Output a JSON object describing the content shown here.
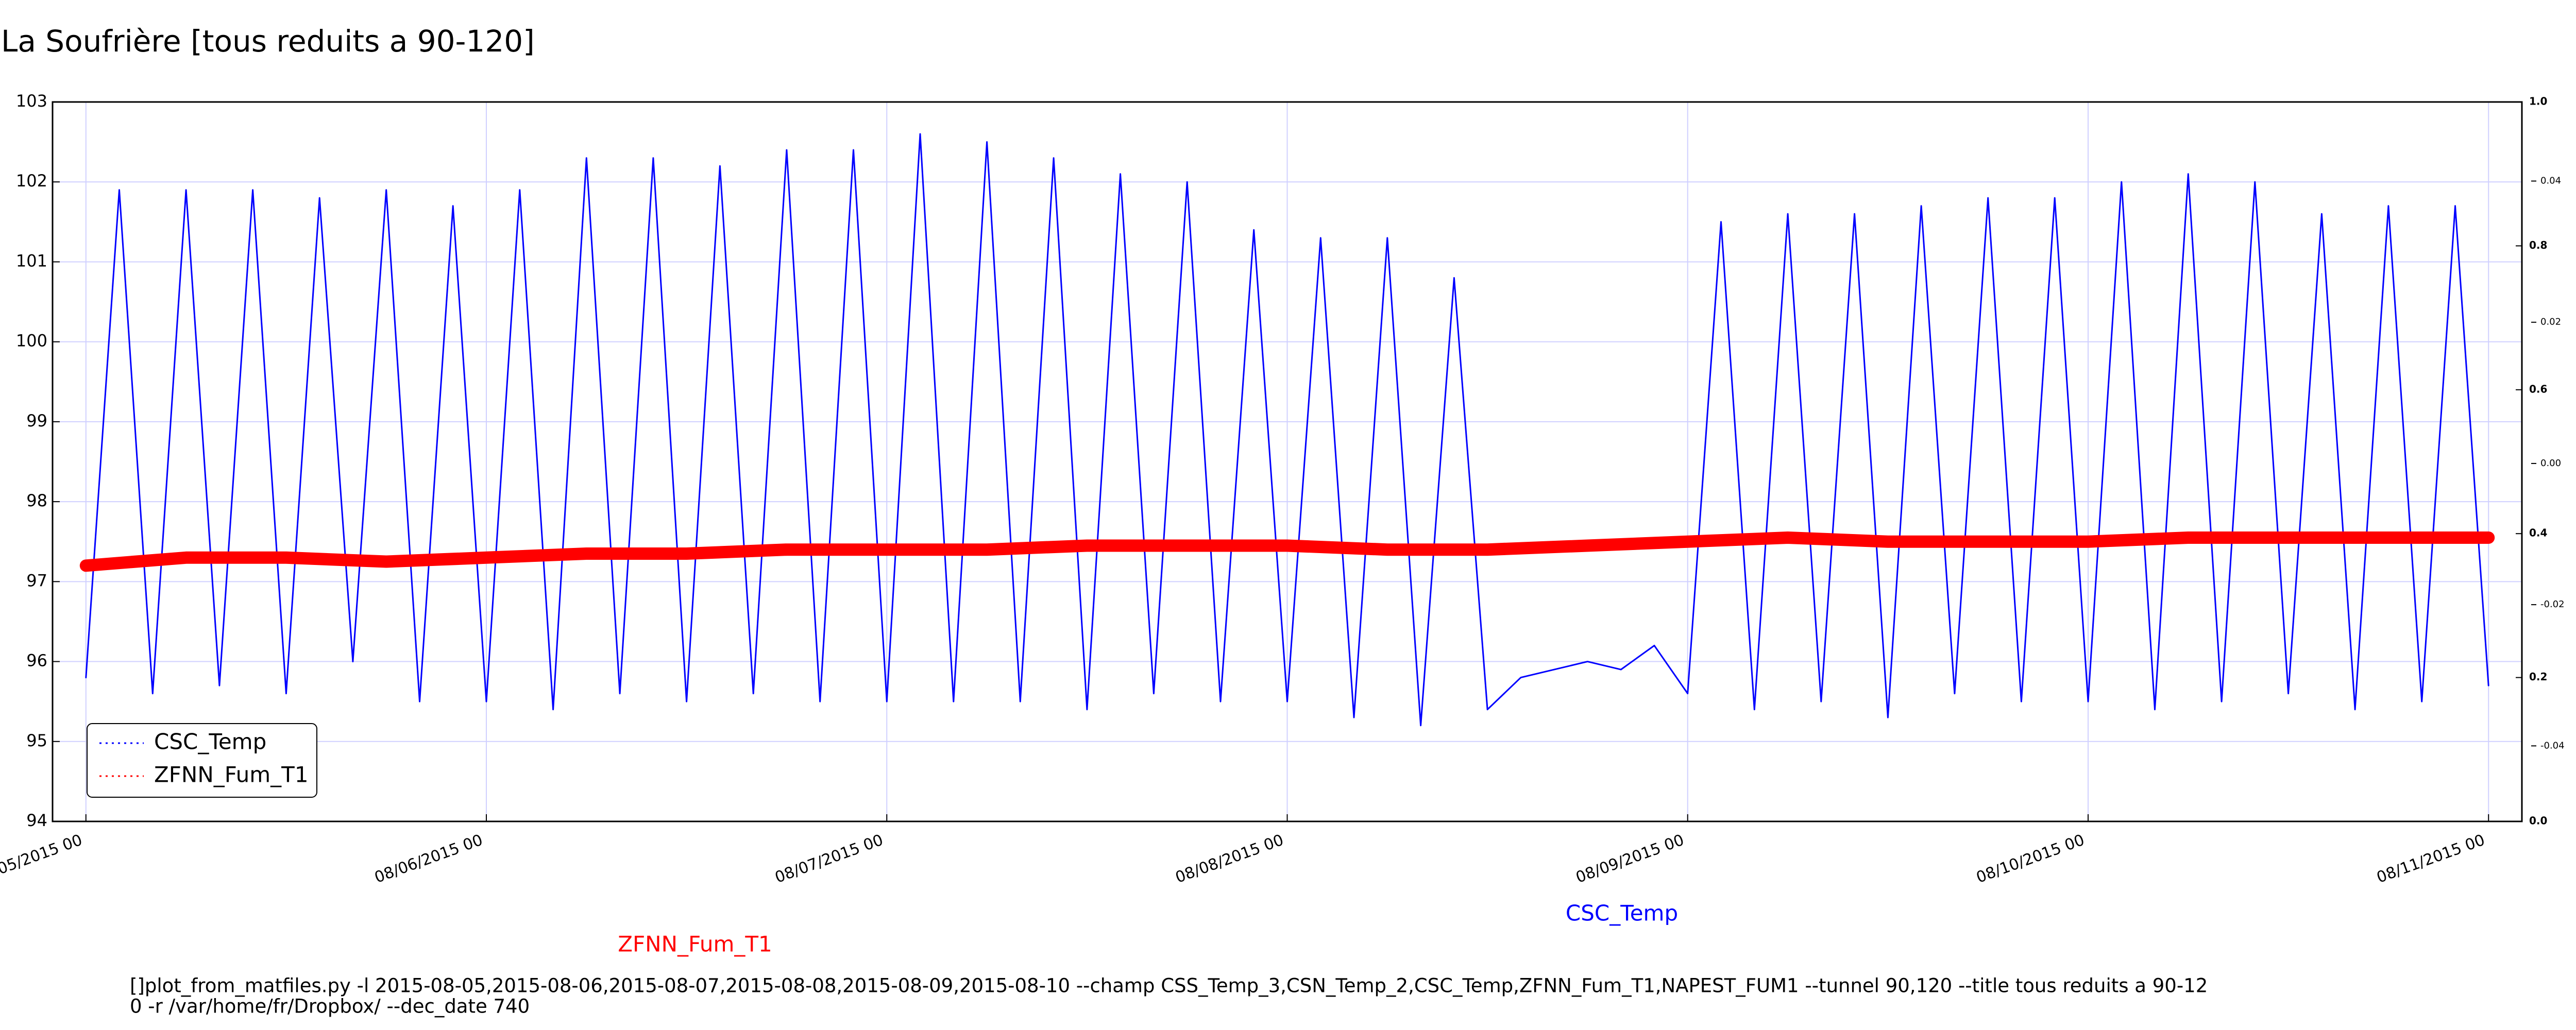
{
  "chart_data": {
    "type": "line",
    "title": "La Soufrière [tous reduits a 90-120]",
    "xlim": [
      "08/04/2015 22",
      "08/11/2015 02"
    ],
    "xticks": [
      "08/05/2015 00",
      "08/06/2015 00",
      "08/07/2015 00",
      "08/08/2015 00",
      "08/09/2015 00",
      "08/10/2015 00",
      "08/11/2015 00"
    ],
    "ylim": [
      94,
      103
    ],
    "yticks": [
      94,
      95,
      96,
      97,
      98,
      99,
      100,
      101,
      102,
      103
    ],
    "y2lim": [
      0,
      1
    ],
    "y2ticks": [
      {
        "value": 0,
        "label": "0.0"
      },
      {
        "value": 0.2,
        "label": "0.2"
      },
      {
        "value": 0.4,
        "label": "0.4"
      },
      {
        "value": 0.6,
        "label": "0.6"
      },
      {
        "value": 0.8,
        "label": "0.8"
      },
      {
        "value": 1,
        "label": "1.0"
      }
    ],
    "y3lim": [
      -0.0507,
      0.0512
    ],
    "y3ticks": [
      -0.04,
      -0.02,
      {
        "value": 0,
        "label": "0.00"
      },
      0.02,
      0.04
    ],
    "grid": true,
    "grid_color": "#d0d0ff",
    "legend": "lower left",
    "series": [
      {
        "name": "CSC_Temp",
        "color": "#0000ff",
        "x": [
          "08/05/2015 00",
          "08/05/2015 02",
          "08/05/2015 04",
          "08/05/2015 06",
          "08/05/2015 08",
          "08/05/2015 10",
          "08/05/2015 12",
          "08/05/2015 14",
          "08/05/2015 16",
          "08/05/2015 18",
          "08/05/2015 20",
          "08/05/2015 22",
          "08/06/2015 00",
          "08/06/2015 02",
          "08/06/2015 04",
          "08/06/2015 06",
          "08/06/2015 08",
          "08/06/2015 10",
          "08/06/2015 12",
          "08/06/2015 14",
          "08/06/2015 16",
          "08/06/2015 18",
          "08/06/2015 20",
          "08/06/2015 22",
          "08/07/2015 00",
          "08/07/2015 02",
          "08/07/2015 04",
          "08/07/2015 06",
          "08/07/2015 08",
          "08/07/2015 10",
          "08/07/2015 12",
          "08/07/2015 14",
          "08/07/2015 16",
          "08/07/2015 18",
          "08/07/2015 20",
          "08/07/2015 22",
          "08/08/2015 00",
          "08/08/2015 02",
          "08/08/2015 04",
          "08/08/2015 06",
          "08/08/2015 08",
          "08/08/2015 10",
          "08/08/2015 12",
          "08/08/2015 14",
          "08/08/2015 16",
          "08/08/2015 18",
          "08/08/2015 20",
          "08/08/2015 22",
          "08/09/2015 00",
          "08/09/2015 02",
          "08/09/2015 04",
          "08/09/2015 06",
          "08/09/2015 08",
          "08/09/2015 10",
          "08/09/2015 12",
          "08/09/2015 14",
          "08/09/2015 16",
          "08/09/2015 18",
          "08/09/2015 20",
          "08/09/2015 22",
          "08/10/2015 00",
          "08/10/2015 02",
          "08/10/2015 04",
          "08/10/2015 06",
          "08/10/2015 08",
          "08/10/2015 10",
          "08/10/2015 12",
          "08/10/2015 14",
          "08/10/2015 16",
          "08/10/2015 18",
          "08/10/2015 20",
          "08/10/2015 22",
          "08/11/2015 00"
        ],
        "values": [
          95.8,
          101.9,
          95.6,
          101.9,
          95.7,
          101.9,
          95.6,
          101.8,
          96.0,
          101.9,
          95.5,
          101.7,
          95.5,
          101.9,
          95.4,
          102.3,
          95.6,
          102.3,
          95.5,
          102.2,
          95.6,
          102.4,
          95.5,
          102.4,
          95.5,
          102.6,
          95.5,
          102.5,
          95.5,
          102.3,
          95.4,
          102.1,
          95.6,
          102.0,
          95.5,
          101.4,
          95.5,
          101.3,
          95.3,
          101.3,
          95.2,
          100.8,
          95.4,
          95.8,
          95.9,
          96.0,
          95.9,
          96.2,
          95.6,
          101.5,
          95.4,
          101.6,
          95.5,
          101.6,
          95.3,
          101.7,
          95.6,
          101.8,
          95.5,
          101.8,
          95.5,
          102.0,
          95.4,
          102.1,
          95.5,
          102.0,
          95.6,
          101.6,
          95.4,
          101.7,
          95.5,
          101.7,
          95.7
        ]
      },
      {
        "name": "ZFNN_Fum_T1",
        "color": "#ff0000",
        "x": [
          "08/05/2015 00",
          "08/05/2015 06",
          "08/05/2015 12",
          "08/05/2015 18",
          "08/06/2015 00",
          "08/06/2015 06",
          "08/06/2015 12",
          "08/06/2015 18",
          "08/07/2015 00",
          "08/07/2015 06",
          "08/07/2015 12",
          "08/07/2015 18",
          "08/08/2015 00",
          "08/08/2015 06",
          "08/08/2015 12",
          "08/08/2015 18",
          "08/09/2015 00",
          "08/09/2015 06",
          "08/09/2015 12",
          "08/09/2015 18",
          "08/10/2015 00",
          "08/10/2015 06",
          "08/10/2015 12",
          "08/10/2015 18",
          "08/11/2015 00"
        ],
        "values": [
          97.2,
          97.3,
          97.3,
          97.25,
          97.3,
          97.35,
          97.35,
          97.4,
          97.4,
          97.4,
          97.45,
          97.45,
          97.45,
          97.4,
          97.4,
          97.45,
          97.5,
          97.55,
          97.5,
          97.5,
          97.5,
          97.55,
          97.55,
          97.55,
          97.55
        ]
      }
    ],
    "annotations": [
      {
        "text": "ZFNN_Fum_T1",
        "color": "#ff0000"
      },
      {
        "text": "CSC_Temp",
        "color": "#0000ff"
      }
    ],
    "footer": [
      "[]plot_from_matfiles.py -l 2015-08-05,2015-08-06,2015-08-07,2015-08-08,2015-08-09,2015-08-10 --champ CSS_Temp_3,CSN_Temp_2,CSC_Temp,ZFNN_Fum_T1,NAPEST_FUM1 --tunnel 90,120 --title tous reduits a 90-12",
      "0 -r /var/home/fr/Dropbox/ --dec_date 740"
    ]
  }
}
